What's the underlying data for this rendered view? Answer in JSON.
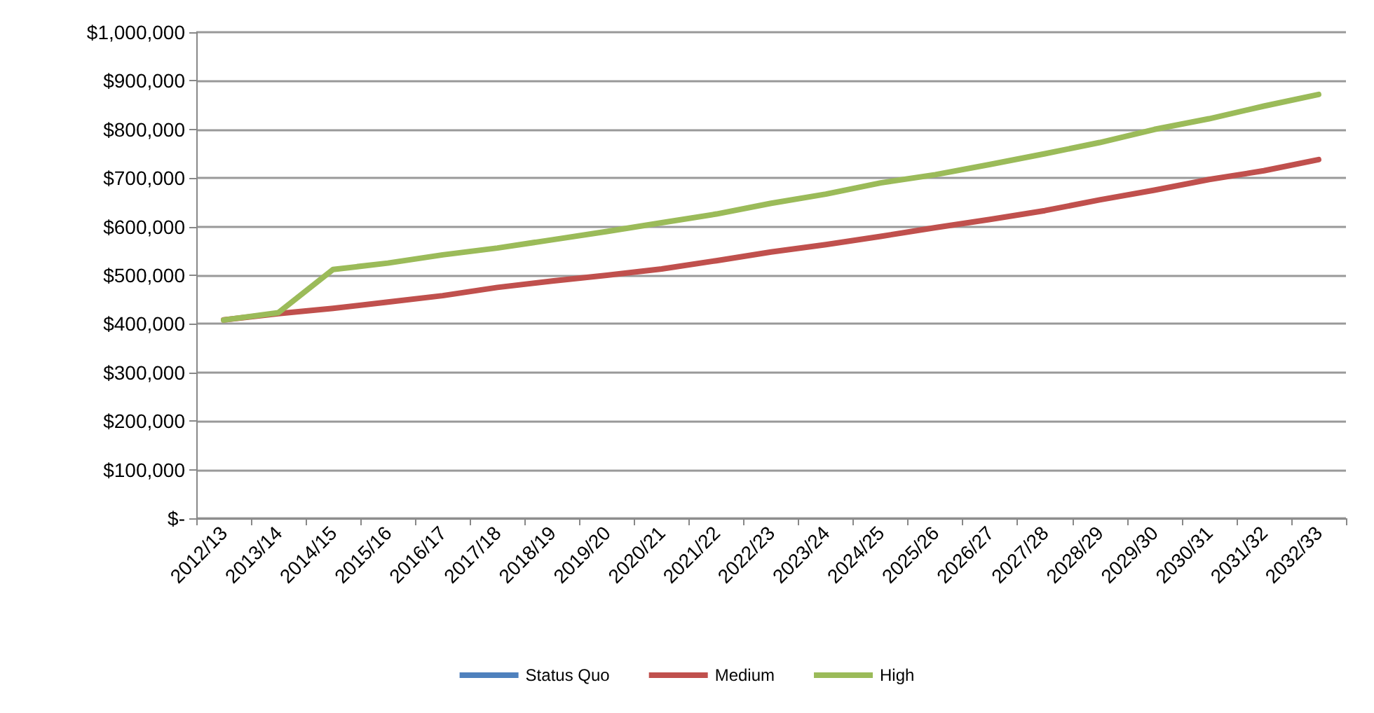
{
  "chart_data": {
    "type": "line",
    "categories": [
      "2012/13",
      "2013/14",
      "2014/15",
      "2015/16",
      "2016/17",
      "2017/18",
      "2018/19",
      "2019/20",
      "2020/21",
      "2021/22",
      "2022/23",
      "2023/24",
      "2024/25",
      "2025/26",
      "2026/27",
      "2027/28",
      "2028/29",
      "2029/30",
      "2030/31",
      "2031/32",
      "2032/33"
    ],
    "series": [
      {
        "name": "Status Quo",
        "color": "#4f81bd",
        "values": [
          null,
          null,
          null,
          null,
          null,
          null,
          null,
          null,
          null,
          null,
          null,
          null,
          null,
          null,
          null,
          null,
          null,
          null,
          null,
          null,
          null
        ]
      },
      {
        "name": "Medium",
        "color": "#c0504d",
        "values": [
          408000,
          421000,
          432000,
          445000,
          458000,
          475000,
          488000,
          500000,
          513000,
          530000,
          548000,
          563000,
          580000,
          598000,
          615000,
          633000,
          655000,
          675000,
          697000,
          715000,
          738000
        ]
      },
      {
        "name": "High",
        "color": "#9bbb59",
        "values": [
          408000,
          423000,
          512000,
          525000,
          542000,
          556000,
          573000,
          590000,
          608000,
          626000,
          648000,
          667000,
          690000,
          707000,
          728000,
          750000,
          773000,
          800000,
          822000,
          848000,
          872000
        ]
      }
    ],
    "ylim": [
      0,
      1000000
    ],
    "yticks": [
      {
        "value": 0,
        "label": "$-"
      },
      {
        "value": 100000,
        "label": "$100,000"
      },
      {
        "value": 200000,
        "label": "$200,000"
      },
      {
        "value": 300000,
        "label": "$300,000"
      },
      {
        "value": 400000,
        "label": "$400,000"
      },
      {
        "value": 500000,
        "label": "$500,000"
      },
      {
        "value": 600000,
        "label": "$600,000"
      },
      {
        "value": 700000,
        "label": "$700,000"
      },
      {
        "value": 800000,
        "label": "$800,000"
      },
      {
        "value": 900000,
        "label": "$900,000"
      },
      {
        "value": 1000000,
        "label": "$1,000,000"
      }
    ],
    "grid": "y",
    "legend": "bottom",
    "marker": "none",
    "line_style": "solid"
  }
}
